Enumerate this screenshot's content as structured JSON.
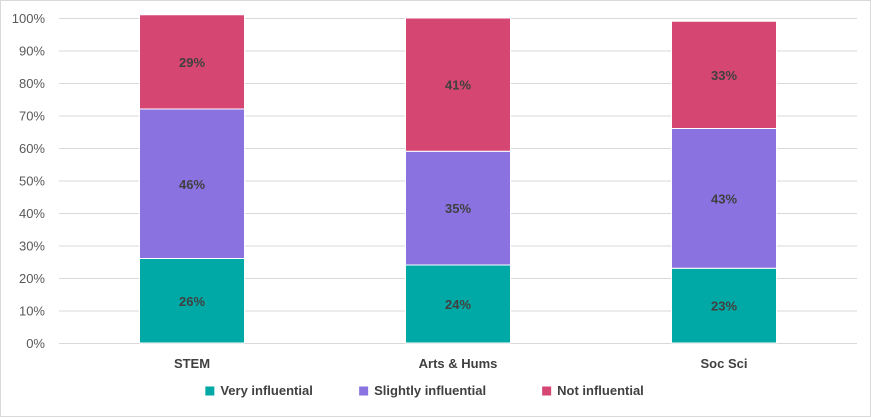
{
  "chart_data": {
    "type": "bar",
    "stacked": true,
    "title": "",
    "xlabel": "",
    "ylabel": "",
    "ylim": [
      0,
      100
    ],
    "yticks": [
      0,
      10,
      20,
      30,
      40,
      50,
      60,
      70,
      80,
      90,
      100
    ],
    "ytick_suffix": "%",
    "grid": true,
    "legend": "bottom",
    "categories": [
      "STEM",
      "Arts & Hums",
      "Soc Sci"
    ],
    "series": [
      {
        "name": "Very influential",
        "color": "#00a9a5",
        "values": [
          26,
          24,
          23
        ],
        "labels": [
          "26%",
          "24%",
          "23%"
        ]
      },
      {
        "name": "Slightly influential",
        "color": "#8a72e0",
        "values": [
          46,
          35,
          43
        ],
        "labels": [
          "46%",
          "35%",
          "43%"
        ]
      },
      {
        "name": "Not influential",
        "color": "#d64672",
        "values": [
          29,
          41,
          33
        ],
        "labels": [
          "29%",
          "41%",
          "33%"
        ]
      }
    ]
  }
}
